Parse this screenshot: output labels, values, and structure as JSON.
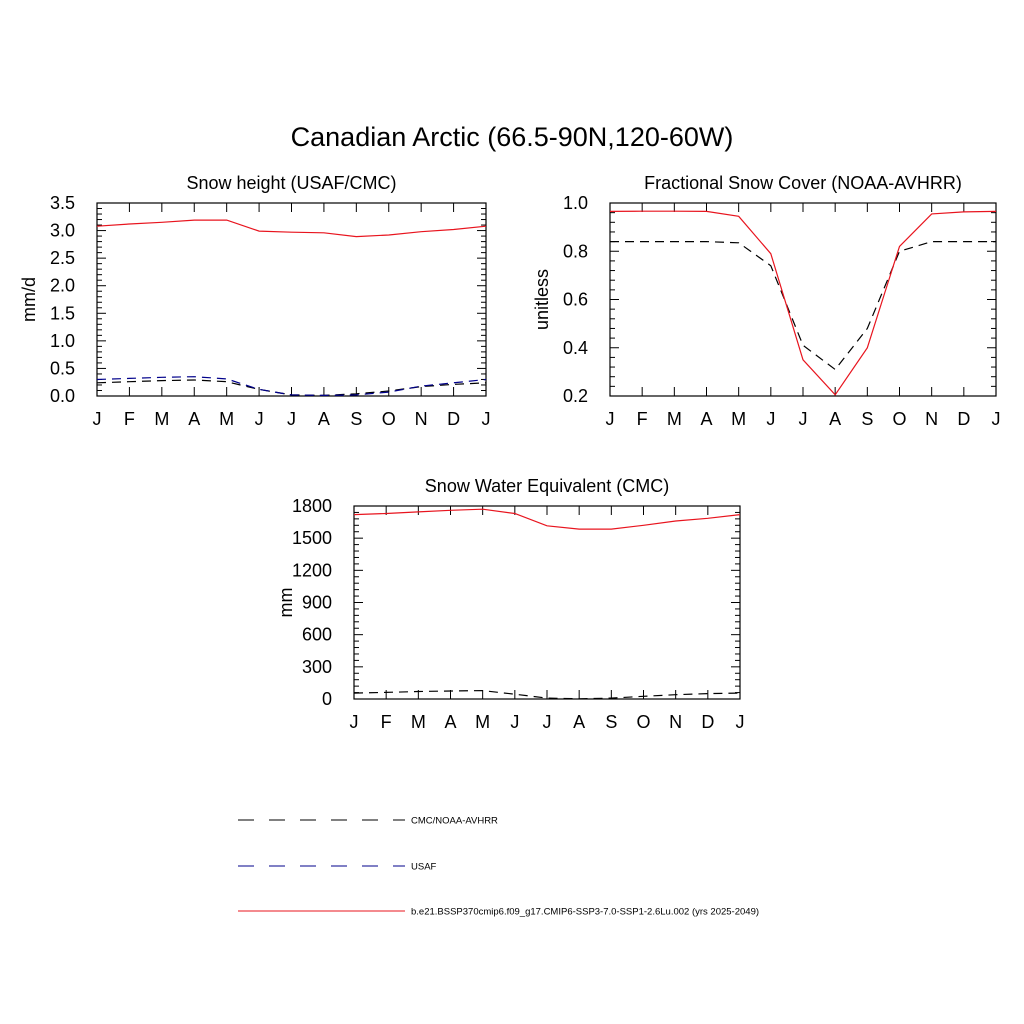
{
  "title": "Canadian Arctic (66.5-90N,120-60W)",
  "colors": {
    "reference": "#000000",
    "usaf": "#00008b",
    "model": "#e8141e",
    "axis": "#000000"
  },
  "chart_data": [
    {
      "type": "line",
      "title": "Snow height (USAF/CMC)",
      "xlabel": "",
      "ylabel": "mm/d",
      "categories": [
        "J",
        "F",
        "M",
        "A",
        "M",
        "J",
        "J",
        "A",
        "S",
        "O",
        "N",
        "D",
        "J"
      ],
      "ylim": [
        0,
        3.5
      ],
      "yticks": [
        0,
        0.5,
        1.0,
        1.5,
        2.0,
        2.5,
        3.0,
        3.5
      ],
      "yticklabels": [
        "0.0",
        "0.5",
        "1.0",
        "1.5",
        "2.0",
        "2.5",
        "3.0",
        "3.5"
      ],
      "series": [
        {
          "key": "reference",
          "style": "dashed",
          "values": [
            0.24,
            0.26,
            0.28,
            0.29,
            0.26,
            0.12,
            0.02,
            0.01,
            0.04,
            0.09,
            0.17,
            0.21,
            0.24
          ]
        },
        {
          "key": "usaf",
          "style": "dashed",
          "values": [
            0.3,
            0.32,
            0.34,
            0.35,
            0.31,
            0.12,
            0.02,
            0.01,
            0.02,
            0.07,
            0.18,
            0.24,
            0.3
          ]
        },
        {
          "key": "model",
          "style": "solid",
          "values": [
            3.08,
            3.12,
            3.15,
            3.19,
            3.19,
            2.99,
            2.97,
            2.96,
            2.89,
            2.92,
            2.98,
            3.02,
            3.08
          ]
        }
      ]
    },
    {
      "type": "line",
      "title": "Fractional Snow Cover (NOAA-AVHRR)",
      "xlabel": "",
      "ylabel": "unitless",
      "categories": [
        "J",
        "F",
        "M",
        "A",
        "M",
        "J",
        "J",
        "A",
        "S",
        "O",
        "N",
        "D",
        "J"
      ],
      "ylim": [
        0.2,
        1.0
      ],
      "yticks": [
        0.2,
        0.4,
        0.6,
        0.8,
        1.0
      ],
      "yticklabels": [
        "0.2",
        "0.4",
        "0.6",
        "0.8",
        "1.0"
      ],
      "series": [
        {
          "key": "reference",
          "style": "dashed",
          "values": [
            0.84,
            0.84,
            0.84,
            0.84,
            0.835,
            0.74,
            0.41,
            0.31,
            0.48,
            0.8,
            0.84,
            0.84,
            0.84
          ]
        },
        {
          "key": "model",
          "style": "solid",
          "values": [
            0.965,
            0.966,
            0.966,
            0.965,
            0.945,
            0.79,
            0.35,
            0.205,
            0.4,
            0.82,
            0.955,
            0.963,
            0.965
          ]
        }
      ]
    },
    {
      "type": "line",
      "title": "Snow Water Equivalent (CMC)",
      "xlabel": "",
      "ylabel": "mm",
      "categories": [
        "J",
        "F",
        "M",
        "A",
        "M",
        "J",
        "J",
        "A",
        "S",
        "O",
        "N",
        "D",
        "J"
      ],
      "ylim": [
        0,
        1800
      ],
      "yticks": [
        0,
        300,
        600,
        900,
        1200,
        1500,
        1800
      ],
      "yticklabels": [
        "0",
        "300",
        "600",
        "900",
        "1200",
        "1500",
        "1800"
      ],
      "series": [
        {
          "key": "reference",
          "style": "dashed",
          "values": [
            55,
            62,
            70,
            75,
            78,
            45,
            8,
            2,
            8,
            25,
            40,
            50,
            55
          ]
        },
        {
          "key": "model",
          "style": "solid",
          "values": [
            1720,
            1730,
            1745,
            1760,
            1770,
            1730,
            1615,
            1585,
            1585,
            1620,
            1660,
            1685,
            1720
          ]
        }
      ]
    }
  ],
  "legend": [
    {
      "key": "reference",
      "label": "CMC/NOAA-AVHRR"
    },
    {
      "key": "usaf",
      "label": "USAF"
    },
    {
      "key": "model",
      "label": "b.e21.BSSP370cmip6.f09_g17.CMIP6-SSP3-7.0-SSP1-2.6Lu.002 (yrs 2025-2049)"
    }
  ]
}
